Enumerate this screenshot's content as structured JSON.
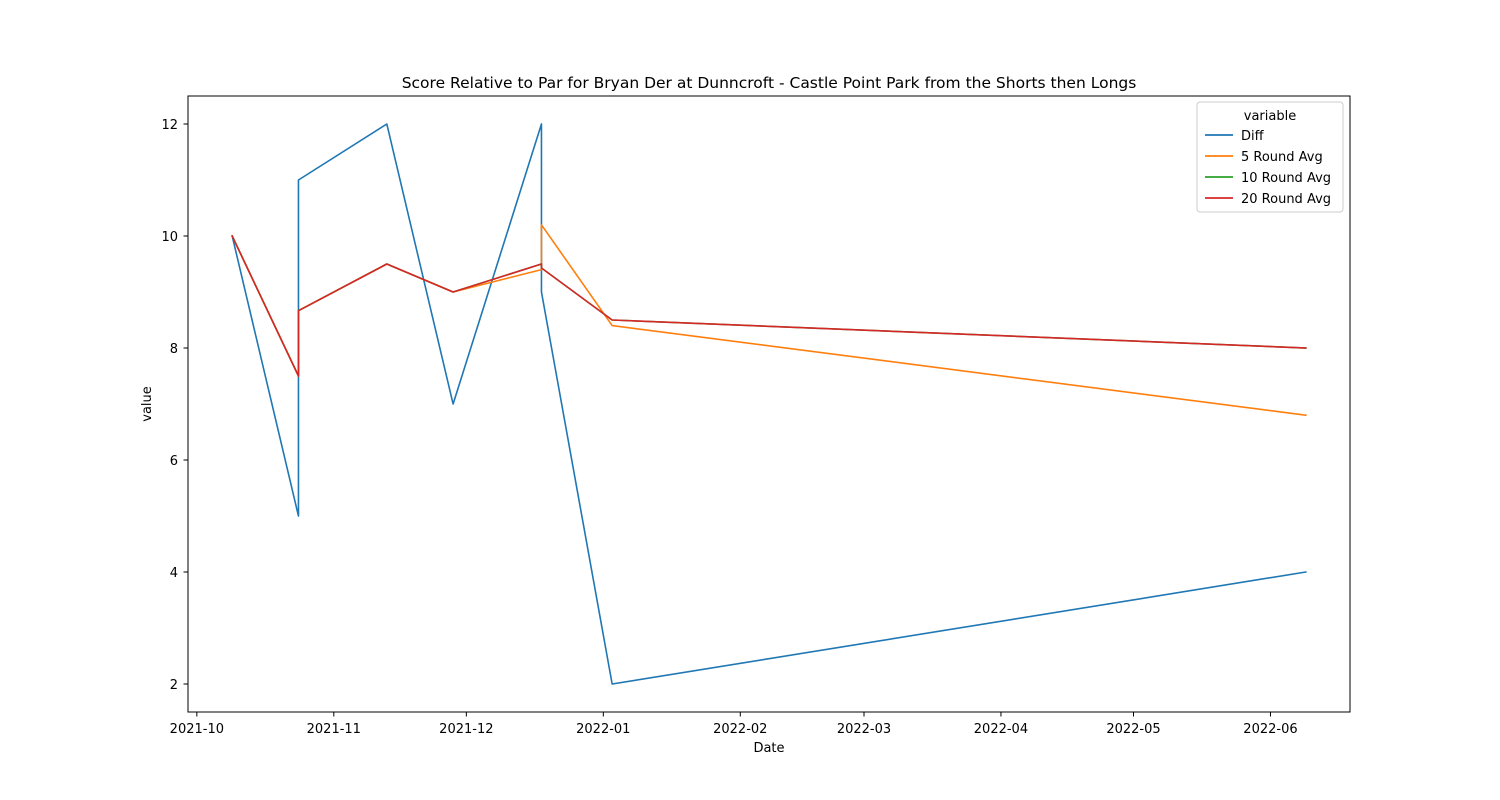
{
  "chart_data": {
    "type": "line",
    "title": "Score Relative to Par for Bryan Der at Dunncroft - Castle Point Park from the Shorts then Longs",
    "xlabel": "Date",
    "ylabel": "value",
    "x_type": "date",
    "xlim": [
      "2021-09-29",
      "2022-06-19"
    ],
    "ylim": [
      1.5,
      12.5
    ],
    "x_ticks": [
      "2021-10",
      "2021-11",
      "2021-12",
      "2022-01",
      "2022-02",
      "2022-03",
      "2022-04",
      "2022-05",
      "2022-06"
    ],
    "y_ticks": [
      2,
      4,
      6,
      8,
      10,
      12
    ],
    "grid": false,
    "legend": {
      "title": "variable",
      "position": "top-right"
    },
    "x": [
      "2021-10-09",
      "2021-10-24",
      "2021-10-24",
      "2021-11-13",
      "2021-11-28",
      "2021-12-18",
      "2021-12-18",
      "2022-01-03",
      "2022-06-09"
    ],
    "series": [
      {
        "name": "Diff",
        "color": "#1f77b4",
        "values": [
          10,
          5,
          11,
          12,
          7,
          12,
          9,
          2,
          4
        ]
      },
      {
        "name": "5 Round Avg",
        "color": "#ff7f0e",
        "values": [
          10,
          7.5,
          8.667,
          9.5,
          9,
          9.4,
          10.2,
          8.4,
          6.8
        ]
      },
      {
        "name": "10 Round Avg",
        "color": "#2ca02c",
        "values": [
          10,
          7.5,
          8.667,
          9.5,
          9,
          9.5,
          9.429,
          8.5,
          8
        ]
      },
      {
        "name": "20 Round Avg",
        "color": "#d62728",
        "values": [
          10,
          7.5,
          8.667,
          9.5,
          9,
          9.5,
          9.429,
          8.5,
          8
        ]
      }
    ]
  }
}
